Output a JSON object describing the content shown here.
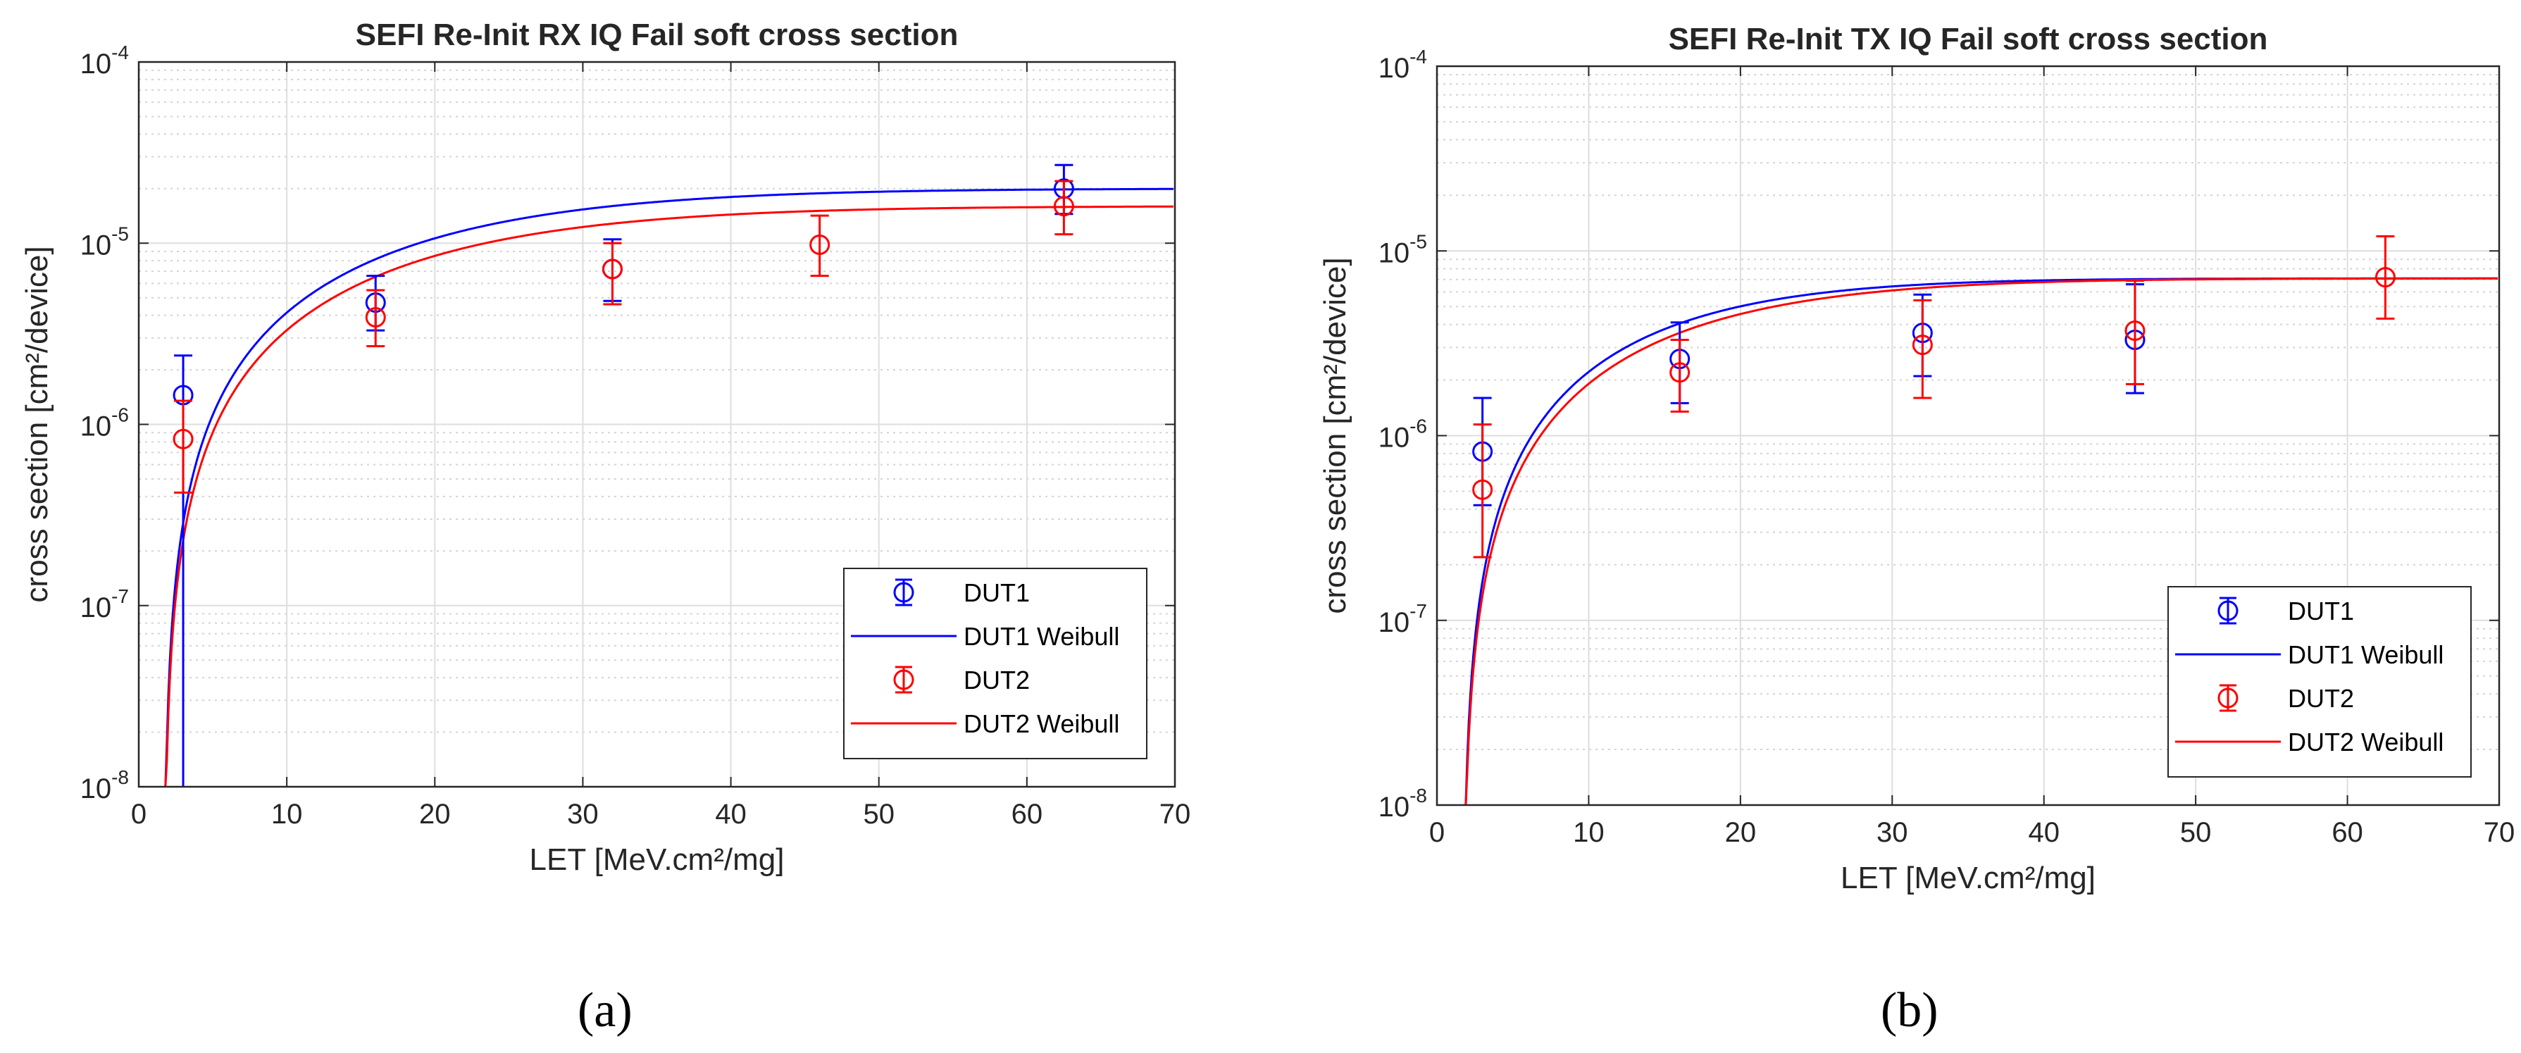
{
  "chart_data": [
    {
      "type": "scatter",
      "title": "SEFI Re-Init RX IQ Fail soft cross section",
      "xlabel": "LET [MeV.cm²/mg]",
      "ylabel": "cross section [cm²/device]",
      "xlim": [
        0,
        70
      ],
      "ylim": [
        1e-08,
        0.0001
      ],
      "yscale": "log",
      "xticks": [
        "0",
        "10",
        "20",
        "30",
        "40",
        "50",
        "60",
        "70"
      ],
      "yticks": [
        {
          "base": "10",
          "exp": "-8"
        },
        {
          "base": "10",
          "exp": "-7"
        },
        {
          "base": "10",
          "exp": "-6"
        },
        {
          "base": "10",
          "exp": "-5"
        },
        {
          "base": "10",
          "exp": "-4"
        }
      ],
      "grid": true,
      "legend_position": "bottom-right",
      "series": [
        {
          "name": "DUT1",
          "kind": "errorbar",
          "color": "#0000ff",
          "points": [
            {
              "x": 3,
              "y": 1.45e-06,
              "lo": 0.0,
              "hi": 2.4e-06
            },
            {
              "x": 16,
              "y": 4.7e-06,
              "lo": 3.3e-06,
              "hi": 6.6e-06
            },
            {
              "x": 32,
              "y": 7.2e-06,
              "lo": 4.8e-06,
              "hi": 1.05e-05
            },
            {
              "x": 62.5,
              "y": 2e-05,
              "lo": 1.45e-05,
              "hi": 2.7e-05
            }
          ]
        },
        {
          "name": "DUT1 Weibull",
          "kind": "line",
          "color": "#0000ff",
          "weibull": {
            "sat": 2e-05,
            "l0": 1.7,
            "w": 22,
            "s": 1.5
          }
        },
        {
          "name": "DUT2",
          "kind": "errorbar",
          "color": "#ff0000",
          "points": [
            {
              "x": 3,
              "y": 8.3e-07,
              "lo": 4.2e-07,
              "hi": 1.35e-06
            },
            {
              "x": 16,
              "y": 3.9e-06,
              "lo": 2.7e-06,
              "hi": 5.5e-06
            },
            {
              "x": 32,
              "y": 7.2e-06,
              "lo": 4.6e-06,
              "hi": 1e-05
            },
            {
              "x": 46,
              "y": 9.8e-06,
              "lo": 6.6e-06,
              "hi": 1.42e-05
            },
            {
              "x": 62.5,
              "y": 1.6e-05,
              "lo": 1.12e-05,
              "hi": 2.2e-05
            }
          ]
        },
        {
          "name": "DUT2 Weibull",
          "kind": "line",
          "color": "#ff0000",
          "weibull": {
            "sat": 1.6e-05,
            "l0": 1.7,
            "w": 22,
            "s": 1.5
          }
        }
      ]
    },
    {
      "type": "scatter",
      "title": "SEFI Re-Init TX IQ Fail soft cross section",
      "xlabel": "LET [MeV.cm²/mg]",
      "ylabel": "cross section [cm²/device]",
      "xlim": [
        0,
        70
      ],
      "ylim": [
        1e-08,
        0.0001
      ],
      "yscale": "log",
      "xticks": [
        "0",
        "10",
        "20",
        "30",
        "40",
        "50",
        "60",
        "70"
      ],
      "yticks": [
        {
          "base": "10",
          "exp": "-8"
        },
        {
          "base": "10",
          "exp": "-7"
        },
        {
          "base": "10",
          "exp": "-6"
        },
        {
          "base": "10",
          "exp": "-5"
        },
        {
          "base": "10",
          "exp": "-4"
        }
      ],
      "grid": true,
      "legend_position": "bottom-right",
      "series": [
        {
          "name": "DUT1",
          "kind": "errorbar",
          "color": "#0000ff",
          "points": [
            {
              "x": 3,
              "y": 8.2e-07,
              "lo": 4.2e-07,
              "hi": 1.6e-06
            },
            {
              "x": 16,
              "y": 2.6e-06,
              "lo": 1.5e-06,
              "hi": 4.1e-06
            },
            {
              "x": 32,
              "y": 3.6e-06,
              "lo": 2.1e-06,
              "hi": 5.8e-06
            },
            {
              "x": 46,
              "y": 3.3e-06,
              "lo": 1.7e-06,
              "hi": 6.6e-06
            }
          ]
        },
        {
          "name": "DUT1 Weibull",
          "kind": "line",
          "color": "#0000ff",
          "weibull": {
            "sat": 7.1e-06,
            "l0": 1.7,
            "w": 16,
            "s": 1.5
          }
        },
        {
          "name": "DUT2",
          "kind": "errorbar",
          "color": "#ff0000",
          "points": [
            {
              "x": 3,
              "y": 5.1e-07,
              "lo": 2.2e-07,
              "hi": 1.15e-06
            },
            {
              "x": 16,
              "y": 2.2e-06,
              "lo": 1.35e-06,
              "hi": 3.3e-06
            },
            {
              "x": 32,
              "y": 3.1e-06,
              "lo": 1.6e-06,
              "hi": 5.4e-06
            },
            {
              "x": 46,
              "y": 3.7e-06,
              "lo": 1.9e-06,
              "hi": 6.9e-06
            },
            {
              "x": 62.5,
              "y": 7.2e-06,
              "lo": 4.3e-06,
              "hi": 1.2e-05
            }
          ]
        },
        {
          "name": "DUT2 Weibull",
          "kind": "line",
          "color": "#ff0000",
          "weibull": {
            "sat": 7.1e-06,
            "l0": 1.7,
            "w": 18,
            "s": 1.5
          }
        }
      ]
    }
  ],
  "captions": [
    "(a)",
    "(b)"
  ]
}
